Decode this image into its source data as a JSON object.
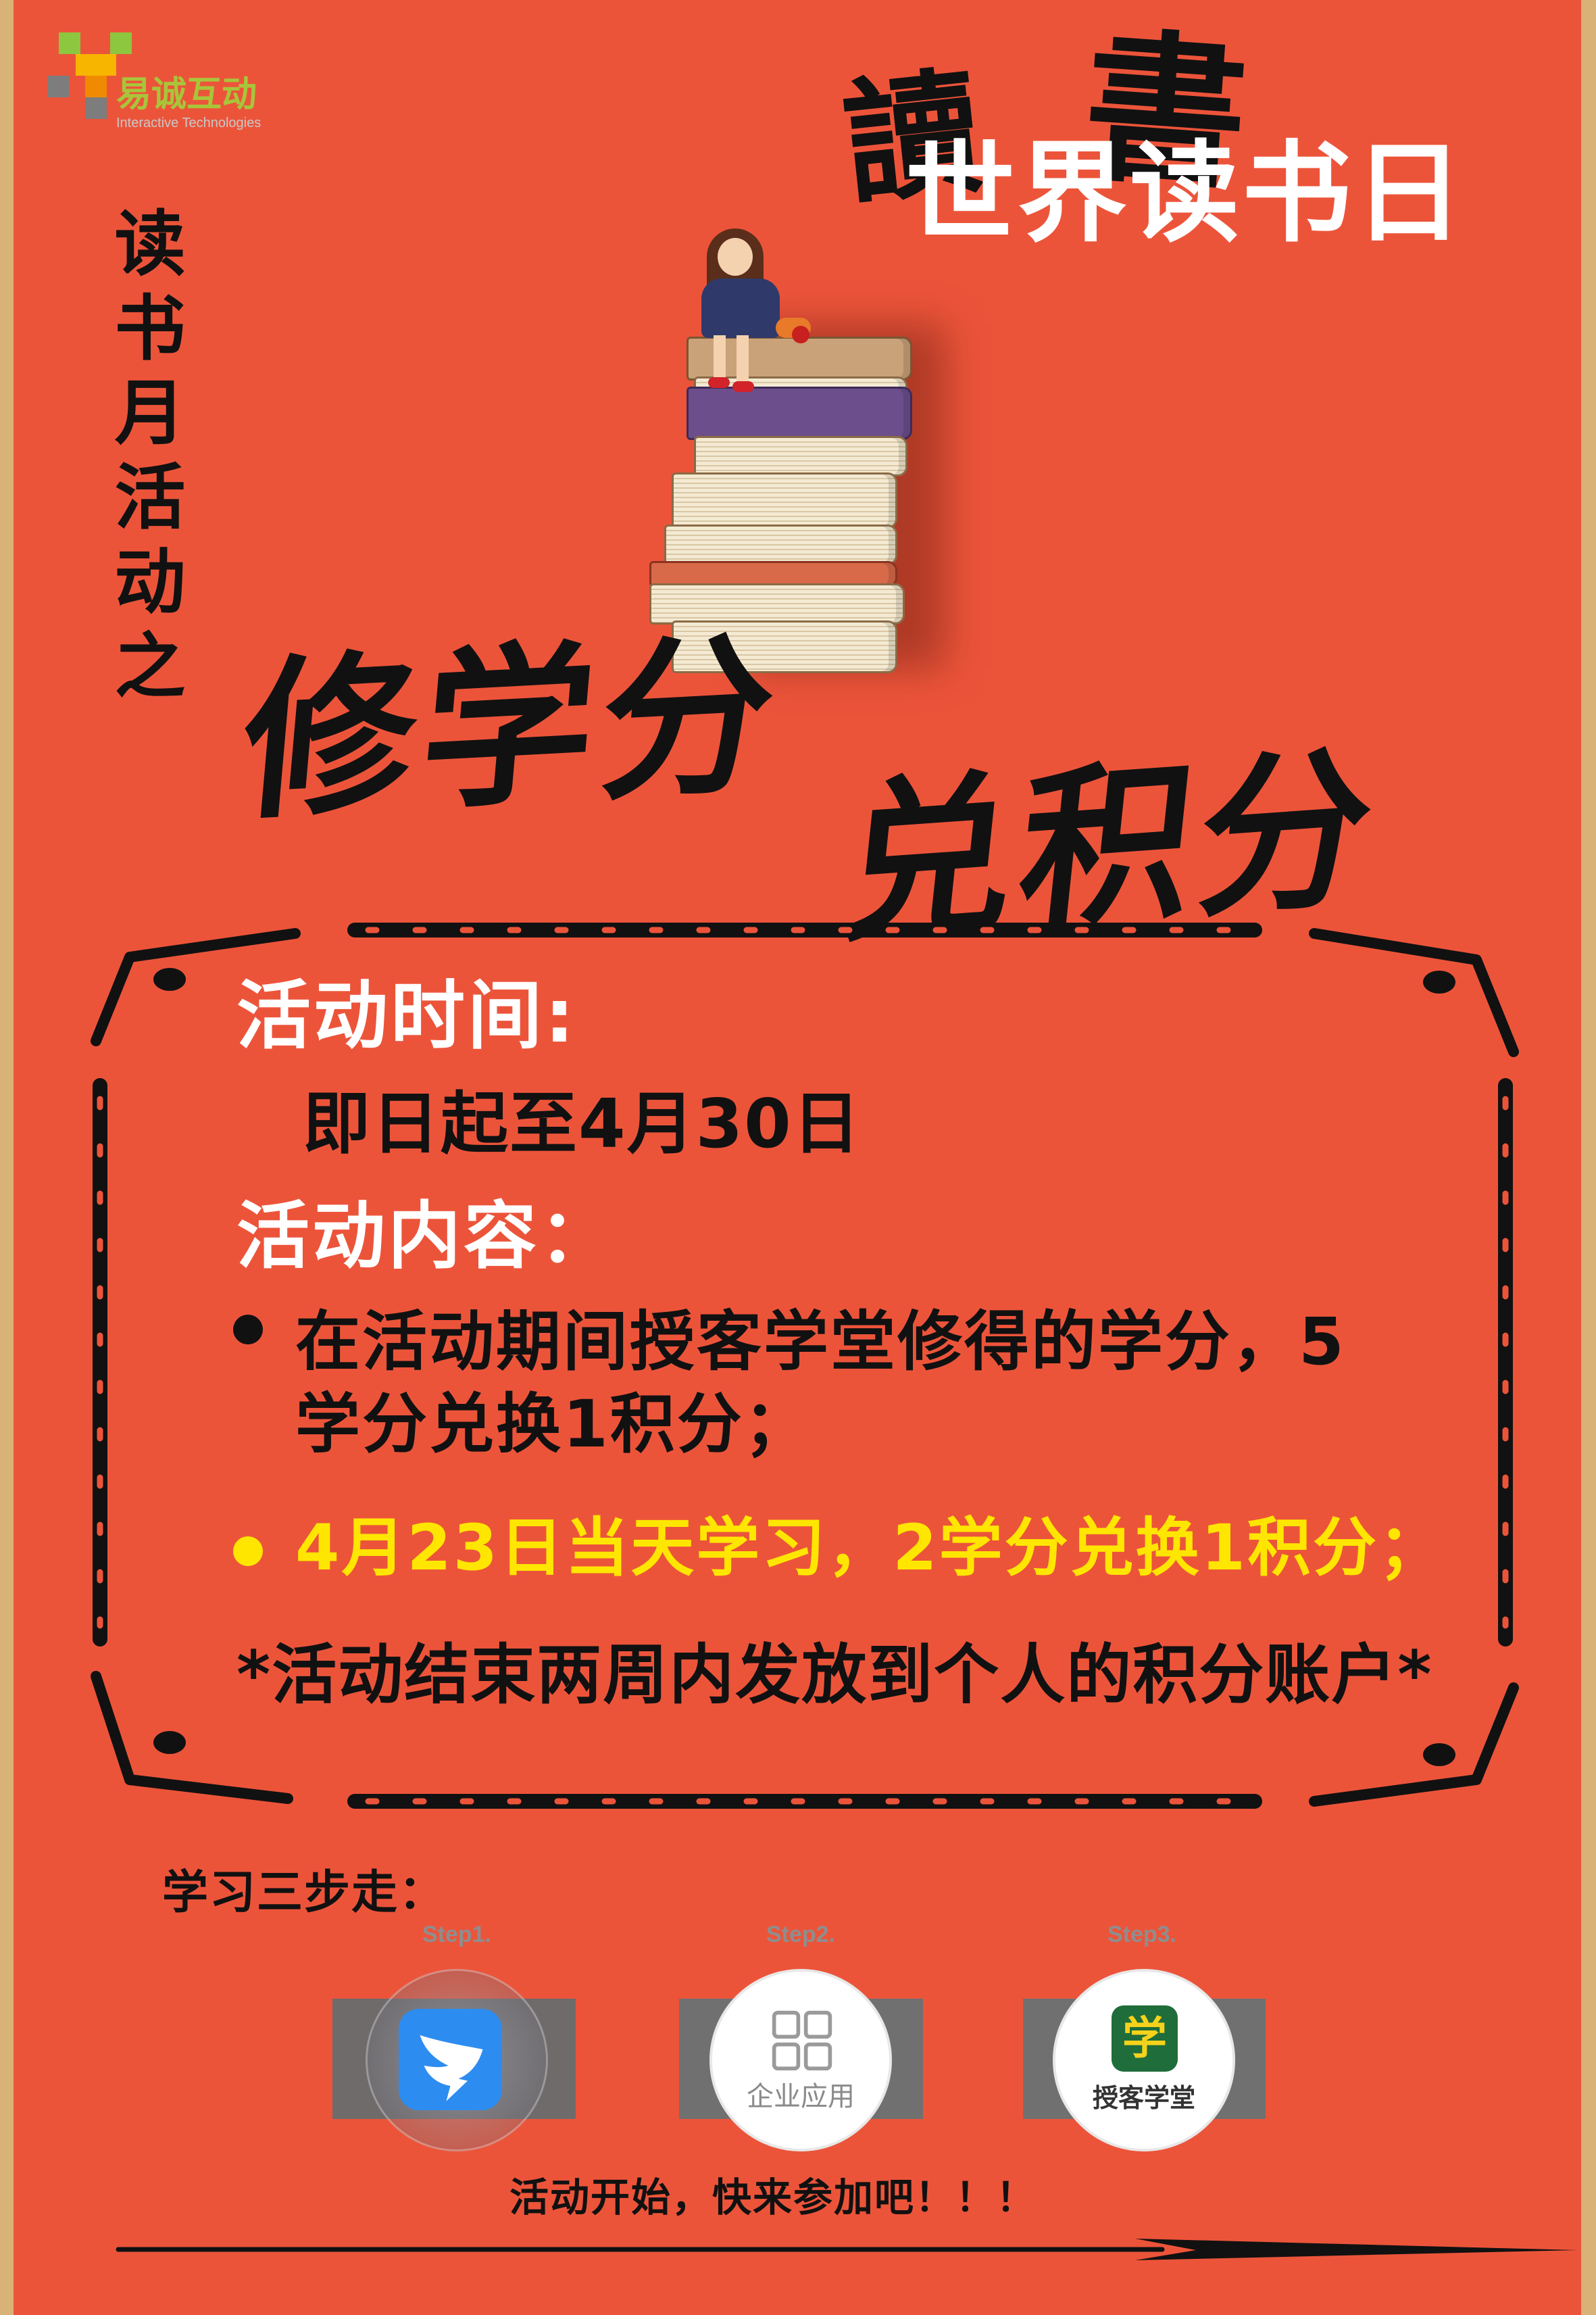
{
  "logo": {
    "name": "易诚互动",
    "subtitle": "Interactive Technologies"
  },
  "header": {
    "title_black_1": "讀",
    "title_black_2": "書",
    "title_white": "世界读书日"
  },
  "vertical_title": "读书月活动之",
  "slogans": [
    "修学分",
    "兑积分"
  ],
  "activity": {
    "time_heading": "活动时间:",
    "time_value": "即日起至4月30日",
    "content_heading": "活动内容：",
    "rule_1_line_1": "在活动期间授客学堂修得的学分，5",
    "rule_1_line_2": "学分兑换1积分；",
    "rule_2": "4月23日当天学习，2学分兑换1积分；",
    "note": "*活动结束两周内发放到个人的积分账户*"
  },
  "steps": {
    "heading": "学习三步走：",
    "items": [
      {
        "label": "Step1.",
        "icon": "dingtalk-icon"
      },
      {
        "label": "Step2.",
        "icon": "grid-apps-icon",
        "caption": "企业应用"
      },
      {
        "label": "Step3.",
        "icon": "xue-app-icon",
        "glyph": "学",
        "caption": "授客学堂"
      }
    ]
  },
  "footer": {
    "cta": "活动开始，快来参加吧！！！"
  },
  "colors": {
    "background": "#EC543A",
    "border": "#D8B276",
    "heading": "#FFFFFF",
    "highlight": "#FFE600",
    "text": "#111111"
  }
}
